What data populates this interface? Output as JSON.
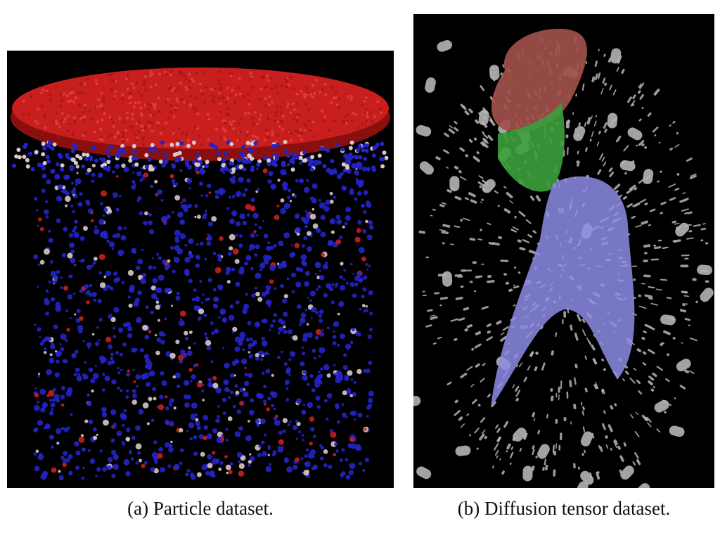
{
  "figure": {
    "panels": [
      {
        "caption": "(a) Particle dataset.",
        "content": "particle-visualization",
        "colors": {
          "high": "#c81e1e",
          "mid": "#d8c8c8",
          "low": "#2323c8",
          "background": "#000000"
        }
      },
      {
        "caption": "(b) Diffusion tensor dataset.",
        "content": "diffusion-tensor-visualization",
        "colors": {
          "glyphs": "#b4b4b4",
          "region_top": "#a0504a",
          "region_middle": "#3ca03c",
          "region_bottom": "#8c8ce6",
          "background": "#000000"
        }
      }
    ]
  }
}
